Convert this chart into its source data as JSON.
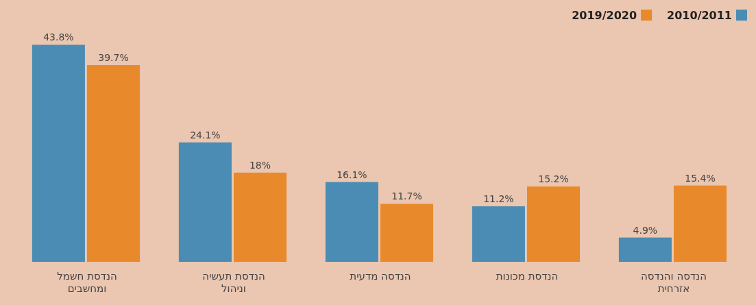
{
  "chart_data": {
    "type": "bar",
    "categories": [
      "הנדסת חשמל ומחשבים",
      "הנדסת תעשיה וניהול",
      "הנדסה מדעית",
      "הנדסת מכונות",
      "הנדסה והנדסה אזרחית"
    ],
    "series": [
      {
        "name": "2010/2011",
        "color": "#4a8cb3",
        "values": [
          43.8,
          24.1,
          16.1,
          11.2,
          4.9
        ],
        "value_labels": [
          "43.8%",
          "24.1%",
          "16.1%",
          "11.2%",
          "4.9%"
        ]
      },
      {
        "name": "2019/2020",
        "color": "#e8892c",
        "values": [
          39.7,
          18,
          11.7,
          15.2,
          15.4
        ],
        "value_labels": [
          "39.7%",
          "18%",
          "11.7%",
          "15.2%",
          "15.4%"
        ]
      }
    ],
    "legend": "top right"
  }
}
